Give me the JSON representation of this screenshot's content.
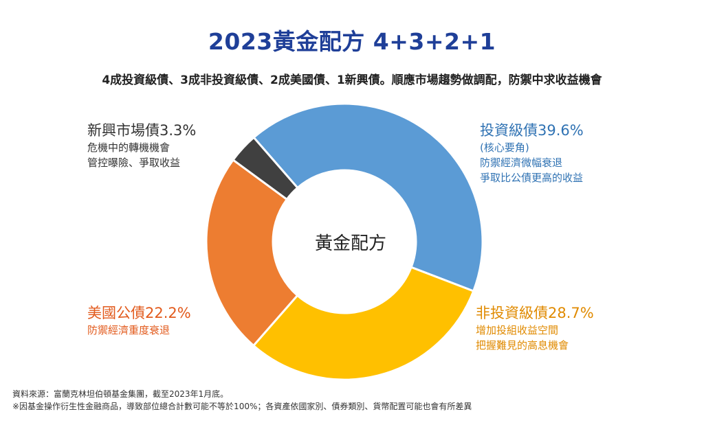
{
  "header": {
    "title": "2023黃金配方 4+3+2+1",
    "subtitle": "4成投資級債、3成非投資級債、2成美國債、1新興債。順應市場趨勢做調配，防禦中求收益機會"
  },
  "chart_data": {
    "type": "pie",
    "donut": true,
    "center_label": "黃金配方",
    "slices": [
      {
        "name": "投資級債",
        "value": 39.6,
        "color": "#5b9bd5"
      },
      {
        "name": "非投資級債",
        "value": 28.7,
        "color": "#ffc000"
      },
      {
        "name": "美國公債",
        "value": 22.2,
        "color": "#ed7d31"
      },
      {
        "name": "新興市場債",
        "value": 3.3,
        "color": "#404040"
      }
    ]
  },
  "annotations": {
    "emerging": {
      "head": "新興市場債3.3%",
      "desc1": "危機中的轉機機會",
      "desc2": "管控曝險、爭取收益"
    },
    "investment_grade": {
      "head": "投資級債39.6%",
      "desc1": "(核心要角)",
      "desc2": "防禦經濟微幅衰退",
      "desc3": "爭取比公債更高的收益"
    },
    "us_treasury": {
      "head": "美國公債22.2%",
      "desc1": "防禦經濟重度衰退"
    },
    "high_yield": {
      "head": "非投資級債28.7%",
      "desc1": "增加投組收益空間",
      "desc2": "把握難見的高息機會"
    }
  },
  "footer": {
    "source": "資料來源：富蘭克林坦伯頓基金集團，截至2023年1月底。",
    "note": "※因基金操作衍生性金融商品，導致部位總合計數可能不等於100%；各資產依國家別、債券類別、貨幣配置可能也會有所差異"
  }
}
